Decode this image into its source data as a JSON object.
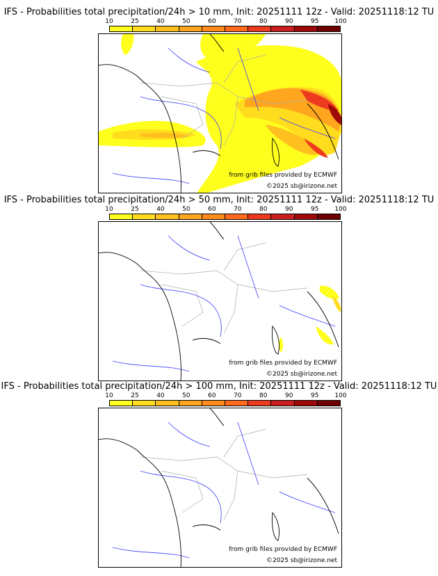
{
  "colors": {
    "scale": [
      "#ffff1e",
      "#ffdc1e",
      "#ffbf1e",
      "#ffa51e",
      "#ff8a1e",
      "#ff6a1e",
      "#ee3a1e",
      "#cc1e1e",
      "#9e0a0a",
      "#6e0000"
    ],
    "river": "#3a3aff",
    "border": "#a9a9a9",
    "coast": "#000000"
  },
  "legend": {
    "ticks": [
      "10",
      "25",
      "40",
      "50",
      "60",
      "70",
      "80",
      "90",
      "95",
      "100"
    ]
  },
  "panels": [
    {
      "title": "IFS - Probabilities total precipitation/24h > 10 mm, Init: 20251111 12z - Valid: 20251118:12 TU",
      "source_text": "from grib files provided by ECMWF",
      "copyright": "©2025 sb@irizone.net"
    },
    {
      "title": "IFS - Probabilities total precipitation/24h > 50 mm, Init: 20251111 12z - Valid: 20251118:12 TU",
      "source_text": "from grib files provided by ECMWF",
      "copyright": "©2025 sb@irizone.net"
    },
    {
      "title": "IFS - Probabilities total precipitation/24h > 100 mm, Init: 20251111 12z - Valid: 20251118:12 TU",
      "source_text": "from grib files provided by ECMWF",
      "copyright": "©2025 sb@irizone.net"
    }
  ]
}
